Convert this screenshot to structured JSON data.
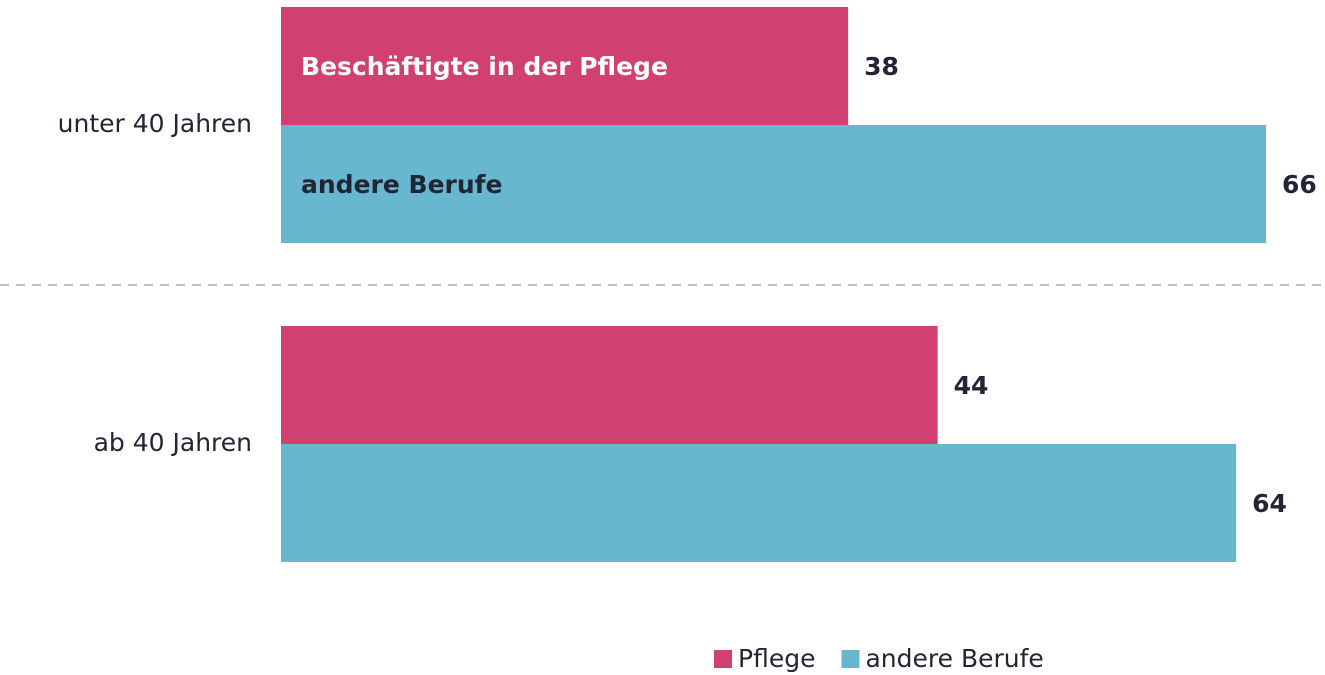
{
  "chart_data": {
    "type": "bar",
    "orientation": "horizontal",
    "categories": [
      "unter 40 Jahren",
      "ab 40 Jahren"
    ],
    "series": [
      {
        "name": "Pflege",
        "color": "#d04070",
        "values": [
          38,
          44
        ]
      },
      {
        "name": "andere Berufe",
        "color": "#67b8cf",
        "values": [
          66,
          64
        ]
      }
    ],
    "annotations": [
      "Beschäftigte in der Pflege",
      "andere Berufe"
    ],
    "annotation_colors": [
      "#ffffff",
      "#222533"
    ]
  }
}
